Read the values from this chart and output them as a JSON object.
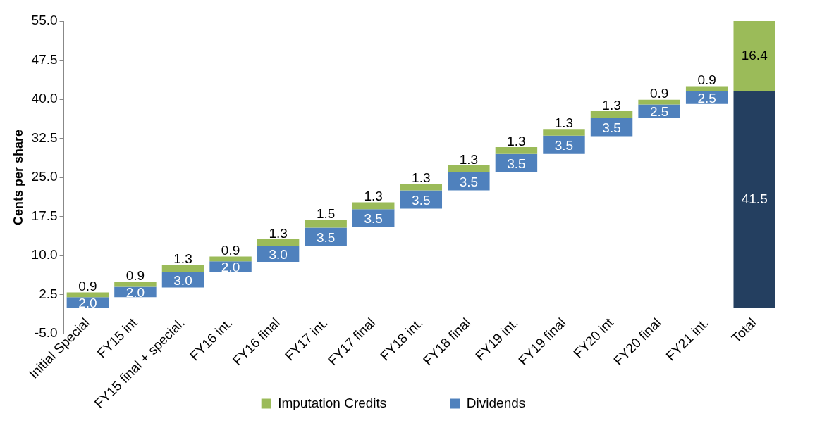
{
  "chart_data": {
    "type": "bar",
    "ylabel": "Cents per share",
    "categories": [
      "Initial Special",
      "FY15 int",
      "FY15 final + special.",
      "FY16 int.",
      "FY16 final",
      "FY17 int.",
      "FY17 final",
      "FY18 int.",
      "FY18 final",
      "FY19 int.",
      "FY19 final",
      "FY20 int",
      "FY20 final",
      "FY21 int.",
      "Total"
    ],
    "series": [
      {
        "name": "Imputation Credits",
        "color": "#9bbb59",
        "values": [
          0.9,
          0.9,
          1.3,
          0.9,
          1.3,
          1.5,
          1.3,
          1.3,
          1.3,
          1.3,
          1.3,
          1.3,
          0.9,
          0.9,
          16.4
        ],
        "base": [
          2.0,
          4.0,
          6.85,
          8.9,
          11.8,
          15.35,
          18.9,
          22.5,
          26.0,
          29.5,
          33.0,
          36.4,
          39.0,
          41.6,
          41.5
        ],
        "value_labels": [
          "0.9",
          "0.9",
          "1.3",
          "0.9",
          "1.3",
          "1.5",
          "1.3",
          "1.3",
          "1.3",
          "1.3",
          "1.3",
          "1.3",
          "0.9",
          "0.9",
          "16.4"
        ]
      },
      {
        "name": "Dividends",
        "color": "#4f81bd",
        "colors": [
          "#4f81bd",
          "#4f81bd",
          "#4f81bd",
          "#4f81bd",
          "#4f81bd",
          "#4f81bd",
          "#4f81bd",
          "#4f81bd",
          "#4f81bd",
          "#4f81bd",
          "#4f81bd",
          "#4f81bd",
          "#4f81bd",
          "#4f81bd",
          "#243f60"
        ],
        "values": [
          2.0,
          2.0,
          3.0,
          2.0,
          3.0,
          3.5,
          3.5,
          3.5,
          3.5,
          3.5,
          3.5,
          3.5,
          2.5,
          2.5,
          41.5
        ],
        "base": [
          0,
          2.0,
          3.85,
          6.9,
          8.8,
          11.85,
          15.4,
          19.0,
          22.5,
          26.0,
          29.5,
          32.9,
          36.5,
          39.1,
          0
        ],
        "value_labels": [
          "2.0",
          "2.0",
          "3.0",
          "2.0",
          "3.0",
          "3.5",
          "3.5",
          "3.5",
          "3.5",
          "3.5",
          "3.5",
          "3.5",
          "2.5",
          "2.5",
          "41.5"
        ]
      }
    ],
    "ylim": [
      -5,
      55
    ],
    "yticks": [
      {
        "value": -5,
        "label": "-5.0"
      },
      {
        "value": 2.5,
        "label": "2.5"
      },
      {
        "value": 10,
        "label": "10.0"
      },
      {
        "value": 17.5,
        "label": "17.5"
      },
      {
        "value": 25,
        "label": "25.0"
      },
      {
        "value": 32.5,
        "label": "32.5"
      },
      {
        "value": 40,
        "label": "40.0"
      },
      {
        "value": 47.5,
        "label": "47.5"
      },
      {
        "value": 55,
        "label": "55.0"
      }
    ],
    "grid": false,
    "legend": "bottom"
  }
}
